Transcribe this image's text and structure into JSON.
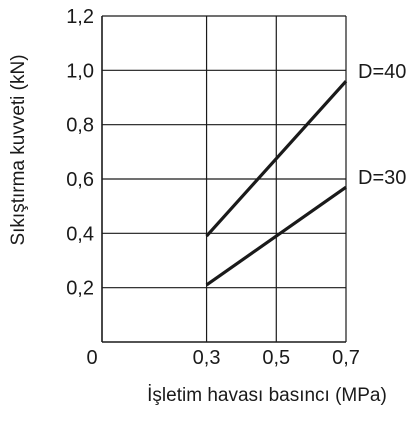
{
  "chart_data": {
    "type": "line",
    "title": "",
    "xlabel": "İşletim havası basıncı (MPa)",
    "ylabel": "Sıkıştırma kuvveti (kN)",
    "xlim": [
      0,
      0.7
    ],
    "ylim": [
      0,
      1.2
    ],
    "x_ticks": [
      {
        "value": 0,
        "label": "0"
      },
      {
        "value": 0.3,
        "label": "0,3"
      },
      {
        "value": 0.5,
        "label": "0,5"
      },
      {
        "value": 0.7,
        "label": "0,7"
      }
    ],
    "y_ticks": [
      {
        "value": 0.2,
        "label": "0,2"
      },
      {
        "value": 0.4,
        "label": "0,4"
      },
      {
        "value": 0.6,
        "label": "0,6"
      },
      {
        "value": 0.8,
        "label": "0,8"
      },
      {
        "value": 1.0,
        "label": "1,0"
      },
      {
        "value": 1.2,
        "label": "1,2"
      }
    ],
    "grid": true,
    "series": [
      {
        "name": "D=40",
        "x": [
          0.3,
          0.7
        ],
        "y": [
          0.39,
          0.96
        ],
        "color": "#1a1a1a"
      },
      {
        "name": "D=30",
        "x": [
          0.3,
          0.7
        ],
        "y": [
          0.21,
          0.57
        ],
        "color": "#1a1a1a"
      }
    ],
    "legend": "inline-right"
  }
}
